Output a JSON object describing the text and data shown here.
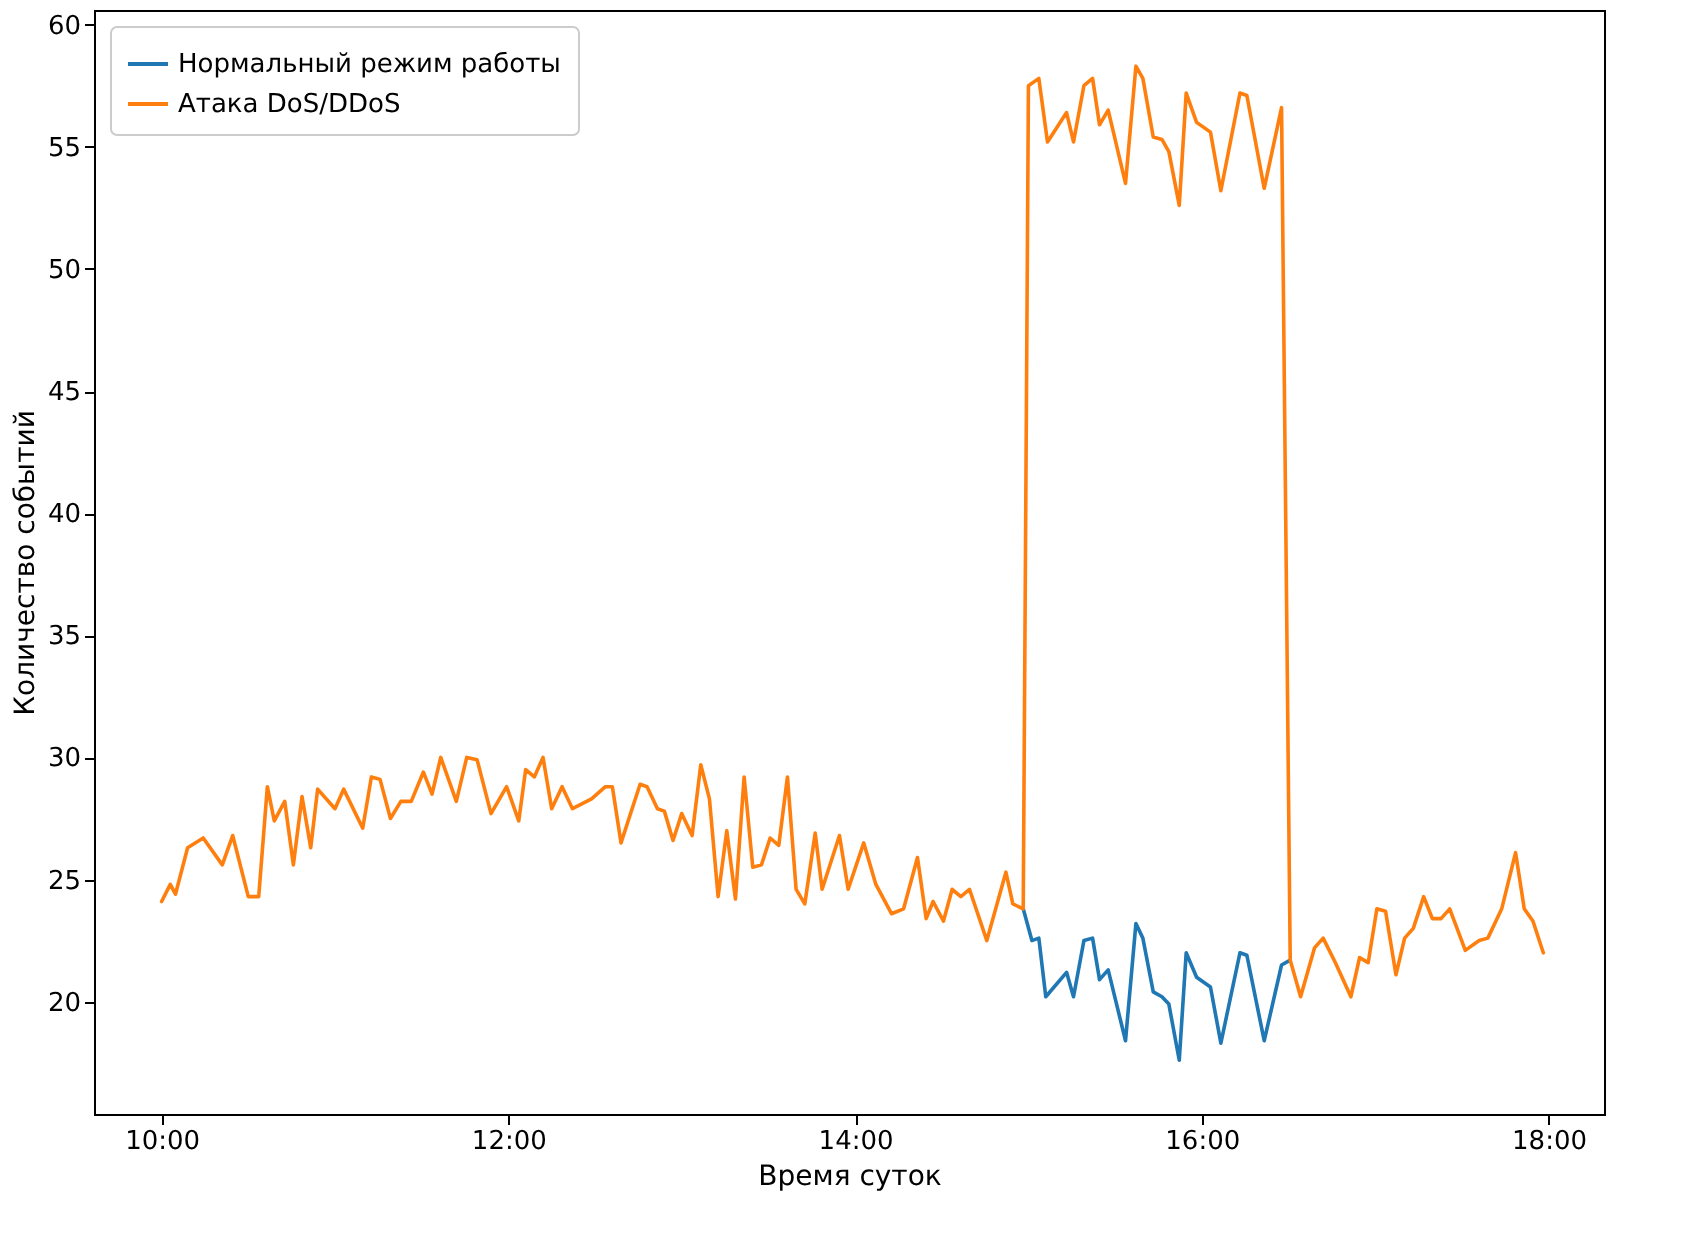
{
  "chart_data": {
    "type": "line",
    "xlabel": "Время суток",
    "ylabel": "Количество событий",
    "xlim": [
      9.61,
      18.32
    ],
    "ylim": [
      15.4,
      60.6
    ],
    "xticks": [
      {
        "value": 10,
        "label": "10:00"
      },
      {
        "value": 12,
        "label": "12:00"
      },
      {
        "value": 14,
        "label": "14:00"
      },
      {
        "value": 16,
        "label": "16:00"
      },
      {
        "value": 18,
        "label": "18:00"
      }
    ],
    "yticks": [
      20,
      25,
      30,
      35,
      40,
      45,
      50,
      55,
      60
    ],
    "grid": false,
    "legend": "top left",
    "marker": "none",
    "line_style": "solid",
    "series": [
      {
        "name": "Нормальный режим работы",
        "color": "#1f77b4",
        "x": [
          14.97,
          15.02,
          15.06,
          15.1,
          15.22,
          15.26,
          15.32,
          15.37,
          15.41,
          15.46,
          15.56,
          15.62,
          15.66,
          15.72,
          15.77,
          15.81,
          15.87,
          15.91,
          15.97,
          16.05,
          16.11,
          16.22,
          16.26,
          16.36,
          16.46,
          16.51
        ],
        "values": [
          23.8,
          22.5,
          22.6,
          20.2,
          21.2,
          20.2,
          22.5,
          22.6,
          20.9,
          21.3,
          18.4,
          23.2,
          22.6,
          20.4,
          20.2,
          19.9,
          17.6,
          22.0,
          21.0,
          20.6,
          18.3,
          22.0,
          21.9,
          18.4,
          21.5,
          21.7
        ]
      },
      {
        "name": "Атака DoS/DDoS",
        "color": "#ff7f0e",
        "x": [
          10.0,
          10.05,
          10.08,
          10.15,
          10.24,
          10.35,
          10.41,
          10.5,
          10.56,
          10.61,
          10.65,
          10.71,
          10.76,
          10.81,
          10.86,
          10.9,
          11.0,
          11.05,
          11.16,
          11.21,
          11.26,
          11.32,
          11.38,
          11.44,
          11.51,
          11.56,
          11.61,
          11.7,
          11.76,
          11.82,
          11.9,
          11.99,
          12.06,
          12.1,
          12.15,
          12.2,
          12.25,
          12.31,
          12.37,
          12.48,
          12.56,
          12.6,
          12.65,
          12.76,
          12.8,
          12.86,
          12.9,
          12.95,
          13.0,
          13.06,
          13.11,
          13.16,
          13.21,
          13.26,
          13.31,
          13.36,
          13.41,
          13.46,
          13.51,
          13.56,
          13.61,
          13.66,
          13.71,
          13.77,
          13.81,
          13.91,
          13.96,
          14.05,
          14.12,
          14.21,
          14.28,
          14.36,
          14.41,
          14.45,
          14.51,
          14.56,
          14.61,
          14.66,
          14.76,
          14.87,
          14.91,
          14.97,
          15.0,
          15.06,
          15.11,
          15.22,
          15.26,
          15.32,
          15.37,
          15.41,
          15.46,
          15.56,
          15.62,
          15.66,
          15.72,
          15.77,
          15.81,
          15.87,
          15.91,
          15.97,
          16.05,
          16.11,
          16.22,
          16.26,
          16.36,
          16.46,
          16.51,
          16.57,
          16.65,
          16.7,
          16.77,
          16.86,
          16.91,
          16.96,
          17.01,
          17.06,
          17.12,
          17.17,
          17.22,
          17.28,
          17.33,
          17.38,
          17.43,
          17.52,
          17.6,
          17.65,
          17.73,
          17.81,
          17.86,
          17.91,
          17.97
        ],
        "values": [
          24.1,
          24.8,
          24.4,
          26.3,
          26.7,
          25.6,
          26.8,
          24.3,
          24.3,
          28.8,
          27.4,
          28.2,
          25.6,
          28.4,
          26.3,
          28.7,
          27.9,
          28.7,
          27.1,
          29.2,
          29.1,
          27.5,
          28.2,
          28.2,
          29.4,
          28.5,
          30.0,
          28.2,
          30.0,
          29.9,
          27.7,
          28.8,
          27.4,
          29.5,
          29.2,
          30.0,
          27.9,
          28.8,
          27.9,
          28.3,
          28.8,
          28.8,
          26.5,
          28.9,
          28.8,
          27.9,
          27.8,
          26.6,
          27.7,
          26.8,
          29.7,
          28.3,
          24.3,
          27.0,
          24.2,
          29.2,
          25.5,
          25.6,
          26.7,
          26.4,
          29.2,
          24.6,
          24.0,
          26.9,
          24.6,
          26.8,
          24.6,
          26.5,
          24.8,
          23.6,
          23.8,
          25.9,
          23.4,
          24.1,
          23.3,
          24.6,
          24.3,
          24.6,
          22.5,
          25.3,
          24.0,
          23.8,
          57.5,
          57.8,
          55.2,
          56.4,
          55.2,
          57.5,
          57.8,
          55.9,
          56.5,
          53.5,
          58.3,
          57.8,
          55.4,
          55.3,
          54.8,
          52.6,
          57.2,
          56.0,
          55.6,
          53.2,
          57.2,
          57.1,
          53.3,
          56.6,
          21.7,
          20.2,
          22.2,
          22.6,
          21.6,
          20.2,
          21.8,
          21.6,
          23.8,
          23.7,
          21.1,
          22.6,
          23.0,
          24.3,
          23.4,
          23.4,
          23.8,
          22.1,
          22.5,
          22.6,
          23.8,
          26.1,
          23.8,
          23.3,
          22.0
        ]
      }
    ]
  }
}
